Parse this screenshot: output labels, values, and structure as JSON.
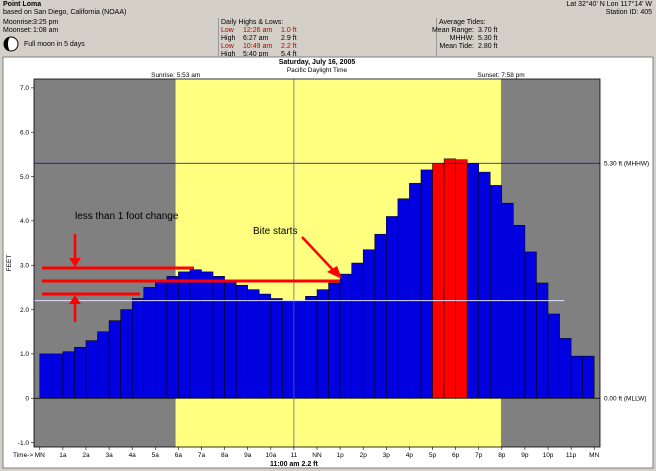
{
  "header": {
    "location_title": "Point Loma",
    "location_subtitle": "based on San Diego, California (NOAA)",
    "coordinates": "Lat 32°40' N   Lon 117°14' W",
    "station_id": "Station ID: 405",
    "moonrise_label": "Moonrise:",
    "moonrise_value": "3:25 pm",
    "moonset_label": "Moonset:",
    "moonset_value": "1:08 am",
    "moon_phase_text": "Full moon in 5 days",
    "highs_lows_title": "Daily Highs & Lows:",
    "highs_lows": [
      {
        "type": "Low",
        "time": "12:26 am",
        "height": "1.0 ft",
        "color": "#b00000"
      },
      {
        "type": "High",
        "time": "6:27 am",
        "height": "2.9 ft",
        "color": "#000000"
      },
      {
        "type": "Low",
        "time": "10:49 am",
        "height": "2.2 ft",
        "color": "#b00000"
      },
      {
        "type": "High",
        "time": "5:40 pm",
        "height": "5.4 ft",
        "color": "#000000"
      }
    ],
    "avg_tides_title": "Average Tides:",
    "avg_tides": [
      {
        "label": "Mean Range:",
        "value": "3.70 ft"
      },
      {
        "label": "MHHW:",
        "value": "5.30 ft"
      },
      {
        "label": "Mean Tide:",
        "value": "2.80 ft"
      }
    ]
  },
  "chart_title": "Saturday, July 16, 2005",
  "chart_subtitle": "Pacific Daylight Time",
  "sunrise": "Sunrise: 5:53 am",
  "sunset": "Sunset: 7:58 pm",
  "mhhw_label": "5.30 ft (MHHW)",
  "mllw_label": "0.00 ft (MLLW)",
  "time_axis_prefix": "Time->",
  "cursor_readout": "11:00 am 2.2 ft",
  "annotations": {
    "less_than": "less than 1 foot change",
    "bite": "Bite starts"
  },
  "colors": {
    "night": "#808080",
    "day": "#ffff80",
    "bar": "#0000e0",
    "bar_highlight": "#ff0000",
    "mhhw_line": "#0000c0",
    "arrow": "#ff0000"
  },
  "chart_data": {
    "type": "bar",
    "ylabel": "FEET",
    "ylim": [
      -1.1,
      7.2
    ],
    "xlim": [
      -0.25,
      24.25
    ],
    "yticks": [
      "-1.0",
      "0",
      "1.0",
      "2.0",
      "3.0",
      "4.0",
      "5.0",
      "6.0",
      "7.0"
    ],
    "xticks": [
      "MN",
      "1a",
      "2a",
      "3a",
      "4a",
      "5a",
      "6a",
      "7a",
      "8a",
      "9a",
      "10a",
      "11",
      "NN",
      "1p",
      "2p",
      "3p",
      "4p",
      "5p",
      "6p",
      "7p",
      "8p",
      "9p",
      "10p",
      "11p",
      "MN"
    ],
    "sunrise_hour": 5.883,
    "sunset_hour": 19.967,
    "mhhw": 5.3,
    "cursor_hour": 11.0,
    "cursor_value": 2.2,
    "bar_width_hours": 0.5,
    "highlight_hours": [
      17.25,
      17.75,
      18.25
    ],
    "bars": [
      {
        "h": 0.25,
        "v": 1.0
      },
      {
        "h": 0.75,
        "v": 1.0
      },
      {
        "h": 1.25,
        "v": 1.05
      },
      {
        "h": 1.75,
        "v": 1.15
      },
      {
        "h": 2.25,
        "v": 1.3
      },
      {
        "h": 2.75,
        "v": 1.5
      },
      {
        "h": 3.25,
        "v": 1.75
      },
      {
        "h": 3.75,
        "v": 2.0
      },
      {
        "h": 4.25,
        "v": 2.25
      },
      {
        "h": 4.75,
        "v": 2.5
      },
      {
        "h": 5.25,
        "v": 2.65
      },
      {
        "h": 5.75,
        "v": 2.75
      },
      {
        "h": 6.25,
        "v": 2.85
      },
      {
        "h": 6.75,
        "v": 2.9
      },
      {
        "h": 7.25,
        "v": 2.85
      },
      {
        "h": 7.75,
        "v": 2.75
      },
      {
        "h": 8.25,
        "v": 2.65
      },
      {
        "h": 8.75,
        "v": 2.55
      },
      {
        "h": 9.25,
        "v": 2.45
      },
      {
        "h": 9.75,
        "v": 2.35
      },
      {
        "h": 10.25,
        "v": 2.25
      },
      {
        "h": 10.75,
        "v": 2.2
      },
      {
        "h": 11.25,
        "v": 2.2
      },
      {
        "h": 11.75,
        "v": 2.3
      },
      {
        "h": 12.25,
        "v": 2.45
      },
      {
        "h": 12.75,
        "v": 2.6
      },
      {
        "h": 13.25,
        "v": 2.8
      },
      {
        "h": 13.75,
        "v": 3.05
      },
      {
        "h": 14.25,
        "v": 3.35
      },
      {
        "h": 14.75,
        "v": 3.7
      },
      {
        "h": 15.25,
        "v": 4.1
      },
      {
        "h": 15.75,
        "v": 4.5
      },
      {
        "h": 16.25,
        "v": 4.85
      },
      {
        "h": 16.75,
        "v": 5.15
      },
      {
        "h": 17.25,
        "v": 5.3
      },
      {
        "h": 17.75,
        "v": 5.4
      },
      {
        "h": 18.25,
        "v": 5.38
      },
      {
        "h": 18.75,
        "v": 5.3
      },
      {
        "h": 19.25,
        "v": 5.1
      },
      {
        "h": 19.75,
        "v": 4.8
      },
      {
        "h": 20.25,
        "v": 4.4
      },
      {
        "h": 20.75,
        "v": 3.9
      },
      {
        "h": 21.25,
        "v": 3.3
      },
      {
        "h": 21.75,
        "v": 2.6
      },
      {
        "h": 22.25,
        "v": 1.9
      },
      {
        "h": 22.75,
        "v": 1.35
      },
      {
        "h": 23.25,
        "v": 0.95
      },
      {
        "h": 23.75,
        "v": 0.95
      }
    ]
  }
}
